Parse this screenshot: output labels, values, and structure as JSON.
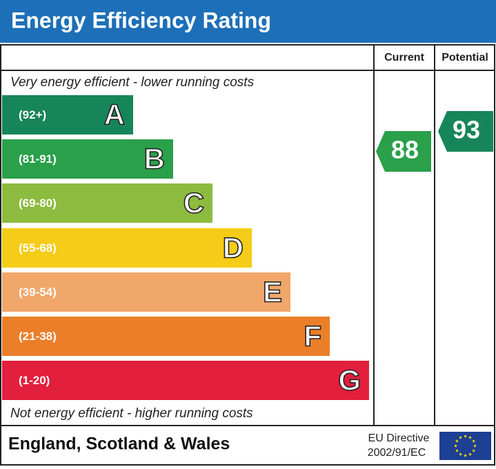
{
  "header": {
    "title": "Energy Efficiency Rating"
  },
  "columns": {
    "current": "Current",
    "potential": "Potential"
  },
  "top_note": "Very energy efficient - lower running costs",
  "bottom_note": "Not energy efficient - higher running costs",
  "bands": [
    {
      "range": "(92+)",
      "letter": "A"
    },
    {
      "range": "(81-91)",
      "letter": "B"
    },
    {
      "range": "(69-80)",
      "letter": "C"
    },
    {
      "range": "(55-68)",
      "letter": "D"
    },
    {
      "range": "(39-54)",
      "letter": "E"
    },
    {
      "range": "(21-38)",
      "letter": "F"
    },
    {
      "range": "(1-20)",
      "letter": "G"
    }
  ],
  "ratings": {
    "current": "88",
    "potential": "93"
  },
  "footer": {
    "region": "England, Scotland & Wales",
    "directive_line1": "EU Directive",
    "directive_line2": "2002/91/EC"
  }
}
